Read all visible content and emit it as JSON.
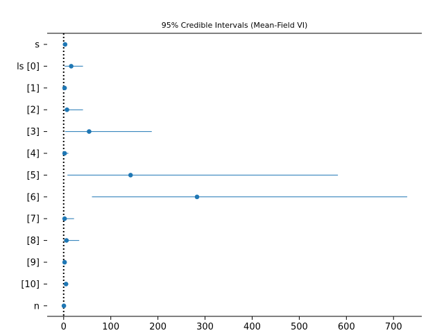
{
  "chart_data": {
    "type": "scatter",
    "title": "95% Credible Intervals (Mean-Field VI)",
    "xlabel": "",
    "ylabel": "",
    "xlim": [
      -35,
      760
    ],
    "x_ticks": [
      0,
      100,
      200,
      300,
      400,
      500,
      600,
      700
    ],
    "reference_line_x": 0,
    "color": "#1f77b4",
    "grid": false,
    "legend": "none",
    "series": [
      {
        "categories": [
          "s",
          "ls [0]",
          "[1]",
          "[2]",
          "[3]",
          "[4]",
          "[5]",
          "[6]",
          "[7]",
          "[8]",
          "[9]",
          "[10]",
          "n"
        ],
        "mean": [
          3,
          16,
          2,
          7,
          54,
          2,
          142,
          283,
          2,
          6,
          2,
          5,
          0.5
        ],
        "lower": [
          1.5,
          2,
          1,
          1,
          3,
          0.5,
          8,
          60,
          0.5,
          0.5,
          0.5,
          1,
          0
        ],
        "upper": [
          5,
          41,
          5,
          41,
          187,
          10,
          582,
          729,
          22,
          33,
          5,
          10,
          1.5
        ]
      }
    ]
  }
}
